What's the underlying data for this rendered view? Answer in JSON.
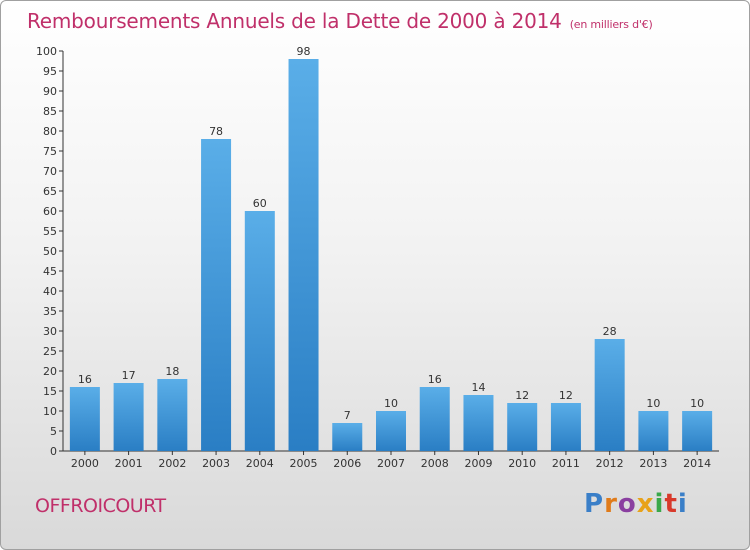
{
  "header": {
    "title": "Remboursements Annuels de la Dette de 2000 à 2014",
    "subtitle": "(en milliers d'€)"
  },
  "footer": {
    "commune": "OFFROICOURT",
    "logo_text": "Proxiti"
  },
  "colors": {
    "title": "#c0306a",
    "bar_light": "#5aaee8",
    "bar_dark": "#2a7ec4",
    "axis": "#333333",
    "grid": "#cccccc"
  },
  "chart_data": {
    "type": "bar",
    "categories": [
      "2000",
      "2001",
      "2002",
      "2003",
      "2004",
      "2005",
      "2006",
      "2007",
      "2008",
      "2009",
      "2010",
      "2011",
      "2012",
      "2013",
      "2014"
    ],
    "values": [
      16,
      17,
      18,
      78,
      60,
      98,
      7,
      10,
      16,
      14,
      12,
      12,
      28,
      10,
      10
    ],
    "ylim": [
      0,
      100
    ],
    "yticks": [
      0,
      5,
      10,
      15,
      20,
      25,
      30,
      35,
      40,
      45,
      50,
      55,
      60,
      65,
      70,
      75,
      80,
      85,
      90,
      95,
      100
    ],
    "title": "Remboursements Annuels de la Dette de 2000 à 2014",
    "xlabel": "",
    "ylabel": "",
    "grid": false,
    "data_labels": true
  }
}
